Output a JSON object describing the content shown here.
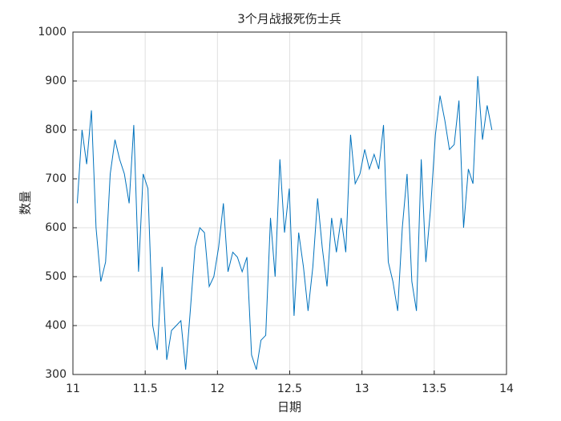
{
  "chart_data": {
    "type": "line",
    "title": "3个月战报死伤士兵",
    "x_label": "日期",
    "y_label": "数量",
    "x": [
      11.03,
      11.063,
      11.095,
      11.128,
      11.16,
      11.193,
      11.226,
      11.258,
      11.291,
      11.323,
      11.356,
      11.389,
      11.421,
      11.454,
      11.486,
      11.519,
      11.552,
      11.584,
      11.617,
      11.649,
      11.682,
      11.715,
      11.747,
      11.78,
      11.812,
      11.845,
      11.878,
      11.91,
      11.943,
      11.975,
      12.008,
      12.041,
      12.073,
      12.106,
      12.138,
      12.171,
      12.204,
      12.236,
      12.269,
      12.301,
      12.334,
      12.367,
      12.399,
      12.432,
      12.464,
      12.497,
      12.53,
      12.562,
      12.595,
      12.627,
      12.66,
      12.693,
      12.725,
      12.758,
      12.79,
      12.823,
      12.856,
      12.888,
      12.921,
      12.953,
      12.986,
      13.019,
      13.051,
      13.084,
      13.116,
      13.149,
      13.182,
      13.214,
      13.247,
      13.279,
      13.312,
      13.345,
      13.377,
      13.41,
      13.442,
      13.475,
      13.508,
      13.54,
      13.573,
      13.605,
      13.638,
      13.671,
      13.703,
      13.736,
      13.768,
      13.801,
      13.834,
      13.866,
      13.899
    ],
    "series": [
      {
        "color": "#0072bd",
        "values": [
          650,
          800,
          730,
          840,
          600,
          490,
          530,
          710,
          780,
          740,
          710,
          650,
          810,
          510,
          710,
          680,
          400,
          350,
          520,
          330,
          390,
          400,
          410,
          310,
          430,
          560,
          600,
          590,
          480,
          500,
          560,
          650,
          510,
          550,
          540,
          510,
          540,
          340,
          310,
          370,
          380,
          620,
          500,
          740,
          590,
          680,
          420,
          590,
          520,
          430,
          520,
          660,
          560,
          480,
          620,
          550,
          620,
          550,
          790,
          690,
          710,
          760,
          720,
          750,
          720,
          810,
          530,
          490,
          430,
          600,
          710,
          490,
          430,
          740,
          530,
          640,
          790,
          870,
          820,
          760,
          770,
          860,
          600,
          720,
          690,
          910,
          780,
          850,
          800
        ]
      }
    ],
    "xlim": [
      11,
      14
    ],
    "xticks": [
      11,
      11.5,
      12,
      12.5,
      13,
      13.5,
      14
    ],
    "ylim": [
      300,
      1000
    ],
    "yticks": [
      300,
      400,
      500,
      600,
      700,
      800,
      900,
      1000
    ],
    "grid": true
  }
}
